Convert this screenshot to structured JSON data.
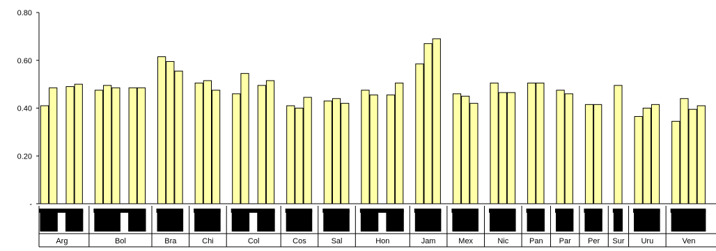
{
  "chart_data": {
    "type": "bar",
    "title": "",
    "xlabel": "",
    "ylabel": "",
    "ylim": [
      0,
      0.8
    ],
    "yticks": [
      {
        "value": 0.8,
        "label": "0.80"
      },
      {
        "value": 0.6,
        "label": "0.60"
      },
      {
        "value": 0.4,
        "label": "0.40"
      },
      {
        "value": 0.2,
        "label": "0.20"
      },
      {
        "value": 0,
        "label": "-"
      }
    ],
    "bar_fill": "#ffffa8",
    "bar_stroke": "#000000",
    "grid": false,
    "legend": "none",
    "categories": [
      {
        "name": "Arg",
        "values": [
          0.41,
          0.485,
          null,
          0.49,
          0.5
        ]
      },
      {
        "name": "Bol",
        "values": [
          0.475,
          0.495,
          0.485,
          null,
          0.485,
          0.485
        ]
      },
      {
        "name": "Bra",
        "values": [
          0.615,
          0.595,
          0.555
        ]
      },
      {
        "name": "Chi",
        "values": [
          0.505,
          0.515,
          0.475
        ]
      },
      {
        "name": "Col",
        "values": [
          0.46,
          0.545,
          null,
          0.495,
          0.515
        ]
      },
      {
        "name": "Cos",
        "values": [
          0.41,
          0.4,
          0.445
        ]
      },
      {
        "name": "Sal",
        "values": [
          0.43,
          0.44,
          0.42
        ]
      },
      {
        "name": "Hon",
        "values": [
          0.475,
          0.455,
          null,
          0.455,
          0.505
        ]
      },
      {
        "name": "Jam",
        "values": [
          0.585,
          0.67,
          0.69
        ]
      },
      {
        "name": "Mex",
        "values": [
          0.46,
          0.45,
          0.42
        ]
      },
      {
        "name": "Nic",
        "values": [
          0.505,
          0.465,
          0.465
        ]
      },
      {
        "name": "Pan",
        "values": [
          0.505,
          0.505
        ]
      },
      {
        "name": "Par",
        "values": [
          0.475,
          0.46
        ]
      },
      {
        "name": "Per",
        "values": [
          0.415,
          0.415
        ]
      },
      {
        "name": "Sur",
        "values": [
          0.495
        ]
      },
      {
        "name": "Uru",
        "values": [
          0.365,
          0.4,
          0.415
        ]
      },
      {
        "name": "Ven",
        "values": [
          0.345,
          0.44,
          0.395,
          0.41
        ]
      }
    ]
  }
}
